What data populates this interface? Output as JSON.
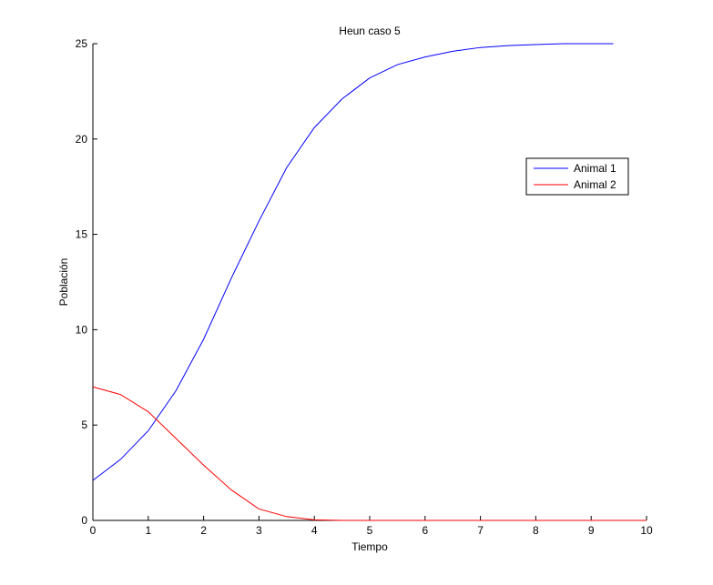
{
  "chart_data": {
    "type": "line",
    "title": "Heun caso 5",
    "x_label": "Tiempo",
    "y_label": "Población",
    "x": [
      0,
      0.5,
      1,
      1.5,
      2,
      2.5,
      3,
      3.5,
      4,
      4.5,
      5,
      5.5,
      6,
      6.5,
      7,
      7.5,
      8,
      8.5,
      9,
      9.4,
      10
    ],
    "series": [
      {
        "name": "Animal 1",
        "color": "#0000ff",
        "values": [
          2.1,
          3.2,
          4.7,
          6.8,
          9.5,
          12.7,
          15.7,
          18.5,
          20.6,
          22.1,
          23.2,
          23.9,
          24.3,
          24.6,
          24.8,
          24.9,
          24.95,
          25,
          25,
          25,
          null
        ]
      },
      {
        "name": "Animal 2",
        "color": "#ff0000",
        "values": [
          7,
          6.6,
          5.7,
          4.3,
          2.9,
          1.6,
          0.6,
          0.2,
          0.03,
          0,
          0,
          0,
          0,
          0,
          0,
          0,
          0,
          0,
          0,
          0,
          0
        ]
      }
    ],
    "xlim": [
      0,
      10
    ],
    "ylim": [
      0,
      25
    ],
    "xticks": [
      0,
      1,
      2,
      3,
      4,
      5,
      6,
      7,
      8,
      9,
      10
    ],
    "yticks": [
      0,
      5,
      10,
      15,
      20,
      25
    ],
    "legend": "northeast"
  }
}
